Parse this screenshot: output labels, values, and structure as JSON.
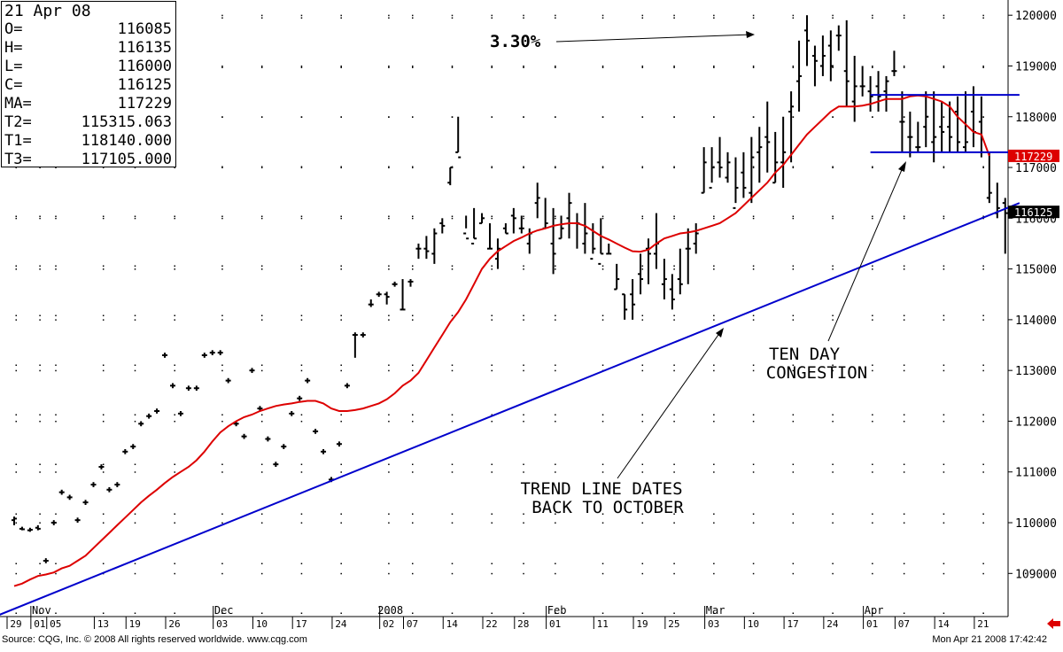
{
  "info": {
    "date": "21 Apr 08",
    "rows": [
      {
        "k": "O=",
        "v": "116085"
      },
      {
        "k": "H=",
        "v": "116135"
      },
      {
        "k": "L=",
        "v": "116000"
      },
      {
        "k": "C=",
        "v": "116125"
      },
      {
        "k": "MA=",
        "v": "117229"
      },
      {
        "k": "T2=",
        "v": "115315.063"
      },
      {
        "k": "T1=",
        "v": "118140.000"
      },
      {
        "k": "T3=",
        "v": "117105.000"
      }
    ]
  },
  "footer": {
    "source": "Source: CQG, Inc. © 2008 All rights reserved worldwide. www.cqg.com",
    "timestamp": "Mon Apr 21 2008 17:42:42"
  },
  "colors": {
    "price_bar": "#000000",
    "moving_average": "#dd0000",
    "trend_line": "#0000cc",
    "grid_dot": "#000000",
    "ma_badge": "#dd0000",
    "close_badge": "#000000",
    "back_arrow": "#dd0000"
  },
  "icons": {
    "back": "back-arrow-icon"
  },
  "annotations": {
    "gain": "3.30%",
    "congestion_line1": "TEN DAY",
    "congestion_line2": "CONGESTION",
    "trend_line1": "TREND LINE DATES",
    "trend_line2": "BACK TO OCTOBER"
  },
  "chart_data": {
    "type": "ohlc",
    "ylim": [
      108150,
      120300
    ],
    "yticks": [
      109000,
      110000,
      111000,
      112000,
      113000,
      114000,
      115000,
      116000,
      117000,
      118000,
      119000,
      120000
    ],
    "ma_label": "117229",
    "close_label": "116125",
    "month_labels": [
      {
        "label": "Nov",
        "x": 3
      },
      {
        "label": "Dec",
        "x": 26
      },
      {
        "label": "2008",
        "x": 47
      },
      {
        "label": "Feb",
        "x": 68
      },
      {
        "label": "Mar",
        "x": 88
      },
      {
        "label": "Apr",
        "x": 108
      }
    ],
    "day_labels": [
      {
        "label": "29",
        "x": 0
      },
      {
        "label": "01",
        "x": 3
      },
      {
        "label": "05",
        "x": 5
      },
      {
        "label": "13",
        "x": 11
      },
      {
        "label": "19",
        "x": 15
      },
      {
        "label": "26",
        "x": 20
      },
      {
        "label": "03",
        "x": 26
      },
      {
        "label": "10",
        "x": 31
      },
      {
        "label": "17",
        "x": 36
      },
      {
        "label": "24",
        "x": 41
      },
      {
        "label": "02",
        "x": 47
      },
      {
        "label": "07",
        "x": 50
      },
      {
        "label": "14",
        "x": 55
      },
      {
        "label": "22",
        "x": 60
      },
      {
        "label": "28",
        "x": 64
      },
      {
        "label": "01",
        "x": 68
      },
      {
        "label": "11",
        "x": 74
      },
      {
        "label": "19",
        "x": 79
      },
      {
        "label": "25",
        "x": 83
      },
      {
        "label": "03",
        "x": 88
      },
      {
        "label": "10",
        "x": 93
      },
      {
        "label": "17",
        "x": 98
      },
      {
        "label": "24",
        "x": 103
      },
      {
        "label": "01",
        "x": 108
      },
      {
        "label": "07",
        "x": 112
      },
      {
        "label": "14",
        "x": 117
      },
      {
        "label": "21",
        "x": 122
      }
    ],
    "bars": [
      [
        110050,
        110120,
        109950,
        110080
      ],
      [
        109880,
        109920,
        109850,
        109870
      ],
      [
        109850,
        109900,
        109820,
        109860
      ],
      [
        109900,
        109950,
        109850,
        109880
      ],
      [
        109250,
        109300,
        109200,
        109250
      ],
      [
        110000,
        110050,
        109950,
        110000
      ],
      [
        110600,
        110650,
        110550,
        110600
      ],
      [
        110500,
        110550,
        110450,
        110500
      ],
      [
        110050,
        110100,
        110000,
        110050
      ],
      [
        110400,
        110450,
        110350,
        110400
      ],
      [
        110750,
        110800,
        110700,
        110750
      ],
      [
        111100,
        111150,
        111050,
        111100
      ],
      [
        110650,
        110700,
        110600,
        110650
      ],
      [
        110750,
        110800,
        110700,
        110750
      ],
      [
        111400,
        111450,
        111350,
        111400
      ],
      [
        111500,
        111550,
        111450,
        111500
      ],
      [
        111950,
        112000,
        111900,
        111950
      ],
      [
        112100,
        112150,
        112050,
        112100
      ],
      [
        112200,
        112250,
        112150,
        112200
      ],
      [
        113300,
        113350,
        113250,
        113300
      ],
      [
        112700,
        112750,
        112650,
        112700
      ],
      [
        112150,
        112200,
        112100,
        112150
      ],
      [
        112650,
        112700,
        112600,
        112650
      ],
      [
        112650,
        112700,
        112600,
        112650
      ],
      [
        113300,
        113350,
        113250,
        113300
      ],
      [
        113350,
        113400,
        113300,
        113350
      ],
      [
        113350,
        113400,
        113300,
        113350
      ],
      [
        112800,
        112850,
        112750,
        112800
      ],
      [
        111950,
        112000,
        111900,
        111950
      ],
      [
        111700,
        111750,
        111650,
        111700
      ],
      [
        113000,
        113050,
        112950,
        113000
      ],
      [
        112250,
        112300,
        112200,
        112250
      ],
      [
        111650,
        111700,
        111600,
        111650
      ],
      [
        111150,
        111200,
        111100,
        111150
      ],
      [
        111500,
        111550,
        111450,
        111500
      ],
      [
        112150,
        112200,
        112100,
        112150
      ],
      [
        112450,
        112500,
        112400,
        112450
      ],
      [
        112800,
        112850,
        112750,
        112800
      ],
      [
        111800,
        111850,
        111750,
        111800
      ],
      [
        111400,
        111450,
        111350,
        111400
      ],
      [
        110850,
        110900,
        110800,
        110850
      ],
      [
        111550,
        111600,
        111500,
        111550
      ],
      [
        112700,
        112750,
        112650,
        112700
      ],
      [
        113700,
        113750,
        113250,
        113700
      ],
      [
        113700,
        113750,
        113650,
        113700
      ],
      [
        114300,
        114400,
        114250,
        114300
      ],
      [
        114500,
        114550,
        114450,
        114500
      ],
      [
        114500,
        114550,
        114300,
        114450
      ],
      [
        114700,
        114750,
        114650,
        114700
      ],
      [
        114200,
        114800,
        114200,
        114200
      ],
      [
        114750,
        114800,
        114650,
        114750
      ],
      [
        115400,
        115500,
        115200,
        115400
      ],
      [
        115400,
        115650,
        115200,
        115350
      ],
      [
        115300,
        115800,
        115100,
        115700
      ],
      [
        115900,
        116000,
        115700,
        115850
      ],
      [
        116700,
        117000,
        116650,
        117000
      ],
      [
        117300,
        118000,
        117300,
        117200
      ],
      [
        115700,
        116050,
        115800,
        115600
      ],
      [
        115500,
        116200,
        115600,
        115600
      ],
      [
        115900,
        116100,
        115900,
        116000
      ],
      [
        115400,
        115900,
        115400,
        115400
      ],
      [
        115200,
        115600,
        115000,
        115400
      ],
      [
        115800,
        115900,
        115700,
        115700
      ],
      [
        116050,
        116200,
        115700,
        116000
      ],
      [
        115800,
        116050,
        115700,
        115800
      ],
      [
        115500,
        115800,
        115300,
        115700
      ],
      [
        116300,
        116700,
        116000,
        116400
      ],
      [
        115800,
        116400,
        115800,
        115900
      ],
      [
        115500,
        116200,
        114900,
        115300
      ],
      [
        115600,
        116050,
        115600,
        115800
      ],
      [
        116000,
        116500,
        115600,
        116300
      ],
      [
        115900,
        116100,
        115400,
        115900
      ],
      [
        115500,
        116300,
        115300,
        115700
      ],
      [
        115200,
        115900,
        115300,
        115400
      ],
      [
        115100,
        116000,
        115300,
        115300
      ],
      [
        115300,
        115500,
        115300,
        115300
      ],
      [
        114600,
        115100,
        114600,
        114800
      ],
      [
        114500,
        114500,
        114000,
        114200
      ],
      [
        114500,
        114800,
        114000,
        114300
      ],
      [
        114900,
        115300,
        114500,
        114800
      ],
      [
        115400,
        115600,
        114700,
        115300
      ],
      [
        115300,
        116100,
        115000,
        115500
      ],
      [
        114700,
        115200,
        114400,
        114800
      ],
      [
        114600,
        114900,
        114200,
        114400
      ],
      [
        114800,
        115400,
        114500,
        114700
      ],
      [
        115400,
        115800,
        114700,
        115400
      ],
      [
        115500,
        115900,
        115300,
        115700
      ],
      [
        116500,
        117400,
        116500,
        117100
      ],
      [
        116600,
        117400,
        116700,
        117000
      ],
      [
        117100,
        117600,
        116800,
        117000
      ],
      [
        116800,
        117300,
        116700,
        117100
      ],
      [
        116200,
        117200,
        116300,
        116600
      ],
      [
        116900,
        117300,
        116400,
        116600
      ],
      [
        116500,
        117600,
        116300,
        117200
      ],
      [
        117300,
        117800,
        116700,
        117400
      ],
      [
        117600,
        118300,
        116900,
        117500
      ],
      [
        116700,
        117700,
        116700,
        117100
      ],
      [
        117100,
        118000,
        116600,
        117300
      ],
      [
        118100,
        118500,
        117100,
        118200
      ],
      [
        118700,
        119500,
        118100,
        118800
      ],
      [
        119700,
        120000,
        119000,
        119500
      ],
      [
        119200,
        119400,
        118600,
        119100
      ],
      [
        119000,
        119600,
        118800,
        119200
      ],
      [
        119400,
        119700,
        118700,
        119000
      ],
      [
        119600,
        119800,
        119300,
        119600
      ],
      [
        118900,
        119900,
        118200,
        118700
      ],
      [
        118300,
        119200,
        117900,
        118600
      ],
      [
        118600,
        119000,
        118400,
        118600
      ],
      [
        118500,
        118800,
        118100,
        118400
      ],
      [
        118600,
        118900,
        118100,
        118400
      ],
      [
        118500,
        118800,
        118100,
        118700
      ],
      [
        118900,
        119300,
        118800,
        118900
      ],
      [
        117900,
        118500,
        117300,
        117900
      ],
      [
        117600,
        118100,
        117200,
        117600
      ],
      [
        117400,
        117900,
        117300,
        117400
      ],
      [
        117800,
        118500,
        117400,
        118000
      ],
      [
        117500,
        118500,
        117100,
        117600
      ],
      [
        117800,
        118300,
        117300,
        117700
      ],
      [
        117800,
        118300,
        117300,
        117600
      ],
      [
        118100,
        118400,
        117300,
        117500
      ],
      [
        117400,
        118500,
        117300,
        117500
      ],
      [
        118100,
        118600,
        117400,
        117700
      ],
      [
        117900,
        118400,
        117200,
        117300
      ],
      [
        116400,
        117300,
        116300,
        116500
      ],
      [
        116100,
        116700,
        116000,
        116200
      ],
      [
        116300,
        116400,
        115300,
        116100
      ],
      [
        116085,
        116135,
        116000,
        116125
      ]
    ],
    "moving_average": [
      108750,
      108800,
      108880,
      108950,
      108980,
      109020,
      109100,
      109150,
      109250,
      109350,
      109500,
      109650,
      109800,
      109950,
      110100,
      110250,
      110400,
      110530,
      110650,
      110780,
      110900,
      111000,
      111100,
      111230,
      111400,
      111600,
      111780,
      111900,
      112000,
      112080,
      112130,
      112200,
      112250,
      112300,
      112330,
      112350,
      112380,
      112400,
      112400,
      112350,
      112250,
      112200,
      112200,
      112220,
      112250,
      112300,
      112350,
      112430,
      112550,
      112700,
      112800,
      112950,
      113200,
      113450,
      113700,
      113950,
      114150,
      114400,
      114700,
      115000,
      115200,
      115350,
      115450,
      115550,
      115620,
      115700,
      115760,
      115800,
      115850,
      115880,
      115900,
      115900,
      115850,
      115750,
      115650,
      115580,
      115500,
      115420,
      115350,
      115340,
      115380,
      115500,
      115600,
      115650,
      115700,
      115720,
      115750,
      115800,
      115850,
      115900,
      116000,
      116100,
      116250,
      116400,
      116550,
      116700,
      116900,
      117050,
      117250,
      117450,
      117650,
      117800,
      117950,
      118100,
      118200,
      118200,
      118200,
      118220,
      118250,
      118300,
      118350,
      118350,
      118350,
      118400,
      118420,
      118400,
      118350,
      118300,
      118200,
      118000,
      117850,
      117700,
      117650,
      117229
    ],
    "trend_line": {
      "x0": -3.2,
      "y0": 108100,
      "x1": 126.8,
      "y1": 116300
    },
    "resistance_line": {
      "x0": 108,
      "x1": 126.8,
      "y": 118430
    },
    "support_line": {
      "x0": 108,
      "x1": 126.8,
      "y": 117300
    }
  }
}
